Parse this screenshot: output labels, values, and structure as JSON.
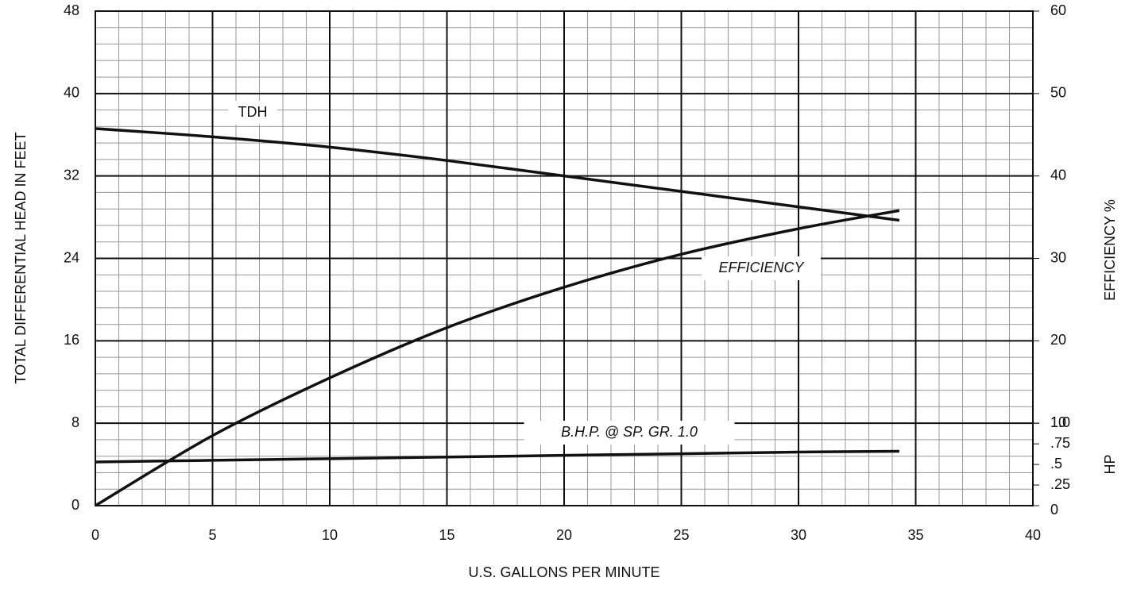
{
  "chart_data": {
    "type": "line",
    "xlabel": "U.S. GALLONS PER MINUTE",
    "ylabel": "TOTAL DIFFERENTIAL HEAD IN FEET",
    "y2label": "EFFICIENCY %",
    "hplabel": "HP",
    "x": [
      0,
      5,
      10,
      15,
      20,
      25,
      30,
      34.3
    ],
    "series": [
      {
        "name": "TDH",
        "color": "#111111",
        "axis": "y",
        "values": [
          36.6,
          35.8,
          34.8,
          33.5,
          32,
          30.5,
          29,
          27.7
        ]
      },
      {
        "name": "EFFICIENCY",
        "color": "#111111",
        "axis": "y2",
        "values": [
          0,
          8.5,
          15.5,
          21.6,
          26.5,
          30.5,
          33.6,
          35.8
        ]
      },
      {
        "name": "B.H.P. @ SP. GR. 1.0",
        "color": "#111111",
        "axis": "hp",
        "values": [
          0.53,
          0.55,
          0.57,
          0.59,
          0.61,
          0.63,
          0.65,
          0.66
        ]
      }
    ],
    "xlim": [
      0,
      40
    ],
    "xticks": [
      0,
      5,
      10,
      15,
      20,
      25,
      30,
      35,
      40
    ],
    "ylim": [
      0,
      48
    ],
    "yticks": [
      0,
      8,
      16,
      24,
      32,
      40,
      48
    ],
    "y2lim": [
      0,
      60
    ],
    "y2ticks": [
      0,
      10,
      20,
      30,
      40,
      50,
      60
    ],
    "hplim": [
      0,
      6
    ],
    "hpticks": [
      0,
      {
        "value": 0.25,
        "label": ".25"
      },
      {
        "value": 0.5,
        "label": ".5"
      },
      {
        "value": 0.75,
        "label": ".75"
      },
      {
        "value": 1,
        "label": "1.0"
      }
    ],
    "grid": true,
    "xminor": 1,
    "yminor": 1.6
  }
}
